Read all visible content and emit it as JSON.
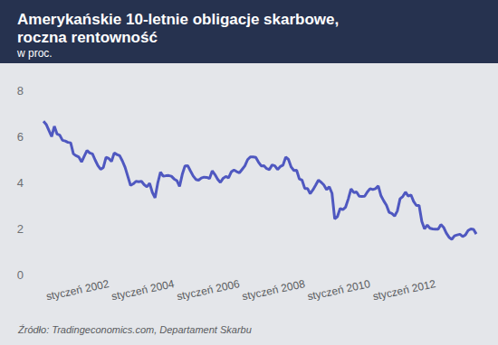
{
  "chart_data": {
    "type": "line",
    "title": "Amerykańskie 10-letnie obligacje skarbowe, roczna rentowność",
    "subtitle": "w proc.",
    "source": "Źródło: Tradingeconomics.com, Departament Skarbu",
    "categories": [
      null,
      null,
      null,
      null,
      null,
      null,
      null,
      null,
      null,
      null,
      null,
      null,
      null,
      null,
      null,
      null,
      null,
      null,
      null,
      null,
      null,
      null,
      null,
      null,
      "styczeń 2002",
      null,
      null,
      null,
      null,
      null,
      null,
      null,
      null,
      null,
      null,
      null,
      null,
      null,
      null,
      null,
      null,
      null,
      null,
      null,
      null,
      null,
      null,
      null,
      "styczeń 2004",
      null,
      null,
      null,
      null,
      null,
      null,
      null,
      null,
      null,
      null,
      null,
      null,
      null,
      null,
      null,
      null,
      null,
      null,
      null,
      null,
      null,
      null,
      null,
      "styczeń 2006",
      null,
      null,
      null,
      null,
      null,
      null,
      null,
      null,
      null,
      null,
      null,
      null,
      null,
      null,
      null,
      null,
      null,
      null,
      null,
      null,
      null,
      null,
      null,
      "styczeń 2008",
      null,
      null,
      null,
      null,
      null,
      null,
      null,
      null,
      null,
      null,
      null,
      null,
      null,
      null,
      null,
      null,
      null,
      null,
      null,
      null,
      null,
      null,
      null,
      "styczeń 2010",
      null,
      null,
      null,
      null,
      null,
      null,
      null,
      null,
      null,
      null,
      null,
      null,
      null,
      null,
      null,
      null,
      null,
      null,
      null,
      null,
      null,
      null,
      null,
      "styczeń 2012",
      null,
      null,
      null,
      null,
      null,
      null,
      null,
      null,
      null,
      null,
      null,
      null,
      null,
      null,
      null
    ],
    "values": [
      6.66,
      6.52,
      6.26,
      5.99,
      6.44,
      6.1,
      6.05,
      5.83,
      5.8,
      5.74,
      5.72,
      5.24,
      5.16,
      5.1,
      4.89,
      5.14,
      5.39,
      5.28,
      5.24,
      4.97,
      4.73,
      4.57,
      4.65,
      5.09,
      5.04,
      4.91,
      5.28,
      5.21,
      5.16,
      4.93,
      4.65,
      4.26,
      3.87,
      3.94,
      4.05,
      4.03,
      4.05,
      3.9,
      3.81,
      3.96,
      3.57,
      3.33,
      3.98,
      4.45,
      4.27,
      4.29,
      4.3,
      4.27,
      4.15,
      4.08,
      3.83,
      4.35,
      4.72,
      4.73,
      4.5,
      4.28,
      4.13,
      4.1,
      4.19,
      4.23,
      4.22,
      4.17,
      4.5,
      4.34,
      4.14,
      4.0,
      4.18,
      4.26,
      4.2,
      4.46,
      4.54,
      4.47,
      4.42,
      4.57,
      4.72,
      4.99,
      5.11,
      5.11,
      5.09,
      4.88,
      4.72,
      4.73,
      4.6,
      4.56,
      4.76,
      4.72,
      4.56,
      4.69,
      4.75,
      5.1,
      5.0,
      4.67,
      4.52,
      4.53,
      4.15,
      4.1,
      3.74,
      3.74,
      3.51,
      3.68,
      3.88,
      4.1,
      4.01,
      3.89,
      3.69,
      3.81,
      3.53,
      2.42,
      2.52,
      2.87,
      2.82,
      2.93,
      3.29,
      3.72,
      3.56,
      3.59,
      3.4,
      3.39,
      3.4,
      3.59,
      3.73,
      3.69,
      3.73,
      3.85,
      3.42,
      3.2,
      3.01,
      2.7,
      2.65,
      2.54,
      2.76,
      3.29,
      3.39,
      3.58,
      3.41,
      3.46,
      3.17,
      3.0,
      3.0,
      2.3,
      1.98,
      2.15,
      2.01,
      1.98,
      1.97,
      1.97,
      2.17,
      2.05,
      1.8,
      1.62,
      1.53,
      1.68,
      1.72,
      1.75,
      1.65,
      1.72,
      1.91,
      1.98,
      1.96,
      1.76
    ],
    "color": "#4f58c0",
    "ylim": [
      0,
      8
    ],
    "yticks": [
      0,
      2,
      4,
      6,
      8
    ],
    "grid": false
  }
}
